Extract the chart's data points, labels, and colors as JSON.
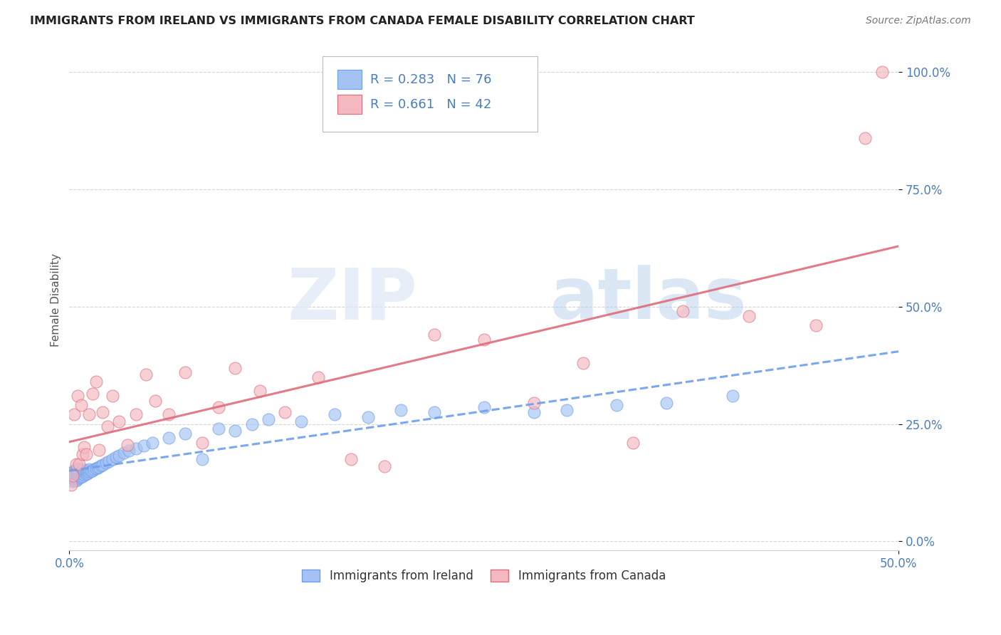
{
  "title": "IMMIGRANTS FROM IRELAND VS IMMIGRANTS FROM CANADA FEMALE DISABILITY CORRELATION CHART",
  "source": "Source: ZipAtlas.com",
  "ylabel": "Female Disability",
  "xlim": [
    0.0,
    0.5
  ],
  "ylim": [
    -0.02,
    1.05
  ],
  "x_tick_positions": [
    0.0,
    0.5
  ],
  "x_tick_labels": [
    "0.0%",
    "50.0%"
  ],
  "y_ticks": [
    0.0,
    0.25,
    0.5,
    0.75,
    1.0
  ],
  "y_tick_labels": [
    "0.0%",
    "25.0%",
    "50.0%",
    "75.0%",
    "100.0%"
  ],
  "ireland_R": 0.283,
  "ireland_N": 76,
  "canada_R": 0.661,
  "canada_N": 42,
  "ireland_color": "#a4c2f4",
  "canada_color": "#f4b8c1",
  "ireland_edge_color": "#6d9eeb",
  "canada_edge_color": "#e06c7a",
  "ireland_line_color": "#6d9eeb",
  "canada_line_color": "#e06c7a",
  "legend_text_color": "#4a7ebf",
  "tick_color": "#4a7ebf",
  "watermark_zip": "ZIP",
  "watermark_atlas": "atlas",
  "ireland_x": [
    0.001,
    0.001,
    0.001,
    0.002,
    0.002,
    0.002,
    0.002,
    0.003,
    0.003,
    0.003,
    0.003,
    0.004,
    0.004,
    0.004,
    0.004,
    0.004,
    0.005,
    0.005,
    0.005,
    0.005,
    0.005,
    0.006,
    0.006,
    0.006,
    0.006,
    0.007,
    0.007,
    0.007,
    0.008,
    0.008,
    0.008,
    0.009,
    0.009,
    0.009,
    0.01,
    0.01,
    0.011,
    0.011,
    0.012,
    0.012,
    0.013,
    0.014,
    0.015,
    0.016,
    0.017,
    0.018,
    0.019,
    0.02,
    0.022,
    0.024,
    0.026,
    0.028,
    0.03,
    0.033,
    0.036,
    0.04,
    0.045,
    0.05,
    0.06,
    0.07,
    0.08,
    0.09,
    0.1,
    0.11,
    0.12,
    0.14,
    0.16,
    0.18,
    0.2,
    0.22,
    0.25,
    0.28,
    0.3,
    0.33,
    0.36,
    0.4
  ],
  "ireland_y": [
    0.13,
    0.14,
    0.145,
    0.128,
    0.135,
    0.14,
    0.148,
    0.132,
    0.138,
    0.143,
    0.15,
    0.13,
    0.136,
    0.142,
    0.148,
    0.153,
    0.133,
    0.138,
    0.144,
    0.149,
    0.155,
    0.135,
    0.14,
    0.146,
    0.152,
    0.137,
    0.143,
    0.149,
    0.139,
    0.145,
    0.151,
    0.141,
    0.147,
    0.152,
    0.143,
    0.149,
    0.145,
    0.151,
    0.147,
    0.153,
    0.149,
    0.151,
    0.153,
    0.155,
    0.157,
    0.159,
    0.161,
    0.163,
    0.167,
    0.171,
    0.175,
    0.179,
    0.183,
    0.188,
    0.193,
    0.198,
    0.204,
    0.21,
    0.22,
    0.23,
    0.175,
    0.24,
    0.235,
    0.25,
    0.26,
    0.255,
    0.27,
    0.265,
    0.28,
    0.275,
    0.285,
    0.275,
    0.28,
    0.29,
    0.295,
    0.31
  ],
  "canada_x": [
    0.001,
    0.002,
    0.003,
    0.004,
    0.005,
    0.006,
    0.007,
    0.008,
    0.009,
    0.01,
    0.012,
    0.014,
    0.016,
    0.018,
    0.02,
    0.023,
    0.026,
    0.03,
    0.035,
    0.04,
    0.046,
    0.052,
    0.06,
    0.07,
    0.08,
    0.09,
    0.1,
    0.115,
    0.13,
    0.15,
    0.17,
    0.19,
    0.22,
    0.25,
    0.28,
    0.31,
    0.34,
    0.37,
    0.41,
    0.45,
    0.48,
    0.49
  ],
  "canada_y": [
    0.12,
    0.14,
    0.27,
    0.165,
    0.31,
    0.165,
    0.29,
    0.185,
    0.2,
    0.185,
    0.27,
    0.315,
    0.34,
    0.195,
    0.275,
    0.245,
    0.31,
    0.255,
    0.205,
    0.27,
    0.355,
    0.3,
    0.27,
    0.36,
    0.21,
    0.285,
    0.37,
    0.32,
    0.275,
    0.35,
    0.175,
    0.16,
    0.44,
    0.43,
    0.295,
    0.38,
    0.21,
    0.49,
    0.48,
    0.46,
    0.86,
    1.0
  ]
}
